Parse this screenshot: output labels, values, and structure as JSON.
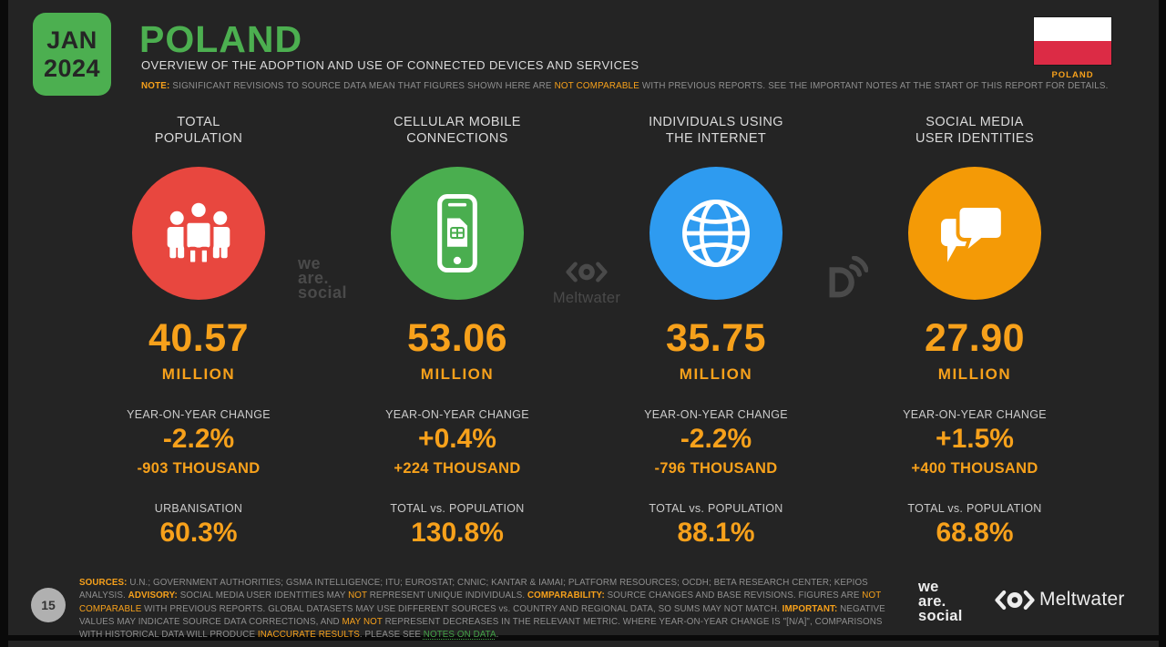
{
  "chart_data": {
    "type": "table",
    "title": "POLAND — Overview of the adoption and use of connected devices and services (Jan 2024)",
    "categories": [
      "TOTAL POPULATION",
      "CELLULAR MOBILE CONNECTIONS",
      "INDIVIDUALS USING THE INTERNET",
      "SOCIAL MEDIA USER IDENTITIES"
    ],
    "values_million": [
      40.57,
      53.06,
      35.75,
      27.9
    ],
    "yoy_change_pct": [
      -2.2,
      0.4,
      -2.2,
      1.5
    ],
    "yoy_change_thousand": [
      -903,
      224,
      -796,
      400
    ],
    "secondary_metric": [
      "URBANISATION 60.3%",
      "TOTAL vs. POPULATION 130.8%",
      "TOTAL vs. POPULATION 88.1%",
      "TOTAL vs. POPULATION 68.8%"
    ]
  },
  "header": {
    "date_month": "JAN",
    "date_year": "2024",
    "title": "POLAND",
    "subtitle": "OVERVIEW OF THE ADOPTION AND USE OF CONNECTED DEVICES AND SERVICES",
    "note_segments": [
      {
        "t": "NOTE:",
        "s": "ob"
      },
      {
        "t": " SIGNIFICANT REVISIONS TO SOURCE DATA MEAN THAT FIGURES SHOWN HERE ARE ",
        "s": "g"
      },
      {
        "t": "NOT COMPARABLE",
        "s": "o"
      },
      {
        "t": " WITH PREVIOUS REPORTS. SEE THE IMPORTANT NOTES AT THE START OF THIS REPORT FOR DETAILS.",
        "s": "g"
      }
    ],
    "flag_label": "POLAND"
  },
  "columns": [
    {
      "title": "TOTAL\nPOPULATION",
      "icon": "people-icon",
      "circle_color": "#E8473F",
      "value": "40.57",
      "unit": "MILLION",
      "change_label": "YEAR-ON-YEAR CHANGE",
      "change_pct": "-2.2%",
      "change_abs": "-903 THOUSAND",
      "secondary_label": "URBANISATION",
      "secondary_value": "60.3%"
    },
    {
      "title": "CELLULAR MOBILE\nCONNECTIONS",
      "icon": "mobile-phone-icon",
      "circle_color": "#4AAE4F",
      "value": "53.06",
      "unit": "MILLION",
      "change_label": "YEAR-ON-YEAR CHANGE",
      "change_pct": "+0.4%",
      "change_abs": "+224 THOUSAND",
      "secondary_label": "TOTAL vs. POPULATION",
      "secondary_value": "130.8%"
    },
    {
      "title": "INDIVIDUALS USING\nTHE INTERNET",
      "icon": "globe-icon",
      "circle_color": "#2E9BF0",
      "value": "35.75",
      "unit": "MILLION",
      "change_label": "YEAR-ON-YEAR CHANGE",
      "change_pct": "-2.2%",
      "change_abs": "-796 THOUSAND",
      "secondary_label": "TOTAL vs. POPULATION",
      "secondary_value": "88.1%"
    },
    {
      "title": "SOCIAL MEDIA\nUSER IDENTITIES",
      "icon": "speech-bubbles-icon",
      "circle_color": "#F49A06",
      "value": "27.90",
      "unit": "MILLION",
      "change_label": "YEAR-ON-YEAR CHANGE",
      "change_pct": "+1.5%",
      "change_abs": "+400 THOUSAND",
      "secondary_label": "TOTAL vs. POPULATION",
      "secondary_value": "68.8%"
    }
  ],
  "watermarks": {
    "we_are_social": "we\nare.\nsocial",
    "meltwater": "Meltwater"
  },
  "footer": {
    "page_number": "15",
    "sources_segments": [
      {
        "t": "SOURCES:",
        "s": "ob"
      },
      {
        "t": " U.N.; GOVERNMENT AUTHORITIES; GSMA INTELLIGENCE; ITU; EUROSTAT; CNNIC; KANTAR & IAMAI; PLATFORM RESOURCES; OCDH; BETA RESEARCH CENTER; KEPIOS ANALYSIS. ",
        "s": "g"
      },
      {
        "t": "ADVISORY:",
        "s": "ob"
      },
      {
        "t": " SOCIAL MEDIA USER IDENTITIES MAY ",
        "s": "g"
      },
      {
        "t": "NOT",
        "s": "o"
      },
      {
        "t": " REPRESENT UNIQUE INDIVIDUALS. ",
        "s": "g"
      },
      {
        "t": "COMPARABILITY:",
        "s": "ob"
      },
      {
        "t": " SOURCE CHANGES AND BASE REVISIONS. FIGURES ARE ",
        "s": "g"
      },
      {
        "t": "NOT COMPARABLE",
        "s": "o"
      },
      {
        "t": " WITH PREVIOUS REPORTS. GLOBAL DATASETS MAY USE DIFFERENT SOURCES vs. COUNTRY AND REGIONAL DATA, SO SUMS MAY NOT MATCH. ",
        "s": "g"
      },
      {
        "t": "IMPORTANT:",
        "s": "ob"
      },
      {
        "t": " NEGATIVE VALUES MAY INDICATE SOURCE DATA CORRECTIONS, AND ",
        "s": "g"
      },
      {
        "t": "MAY NOT",
        "s": "o"
      },
      {
        "t": " REPRESENT DECREASES IN THE RELEVANT METRIC. WHERE YEAR-ON-YEAR CHANGE IS \"[N/A]\", COMPARISONS WITH HISTORICAL DATA WILL PRODUCE ",
        "s": "g"
      },
      {
        "t": "INACCURATE RESULTS",
        "s": "o"
      },
      {
        "t": ". PLEASE SEE ",
        "s": "g"
      },
      {
        "t": "NOTES ON DATA",
        "s": "gr"
      },
      {
        "t": ".",
        "s": "g"
      }
    ],
    "we_are_social_logo": "we\nare.\nsocial",
    "meltwater_logo": "Meltwater"
  },
  "colors": {
    "accent_orange": "#F7A11B",
    "accent_green": "#4CAF50",
    "circle_red": "#E8473F",
    "circle_green": "#4AAE4F",
    "circle_blue": "#2E9BF0",
    "circle_orange": "#F49A06",
    "flag_red": "#DC2B45",
    "slide_bg": "#242424"
  }
}
